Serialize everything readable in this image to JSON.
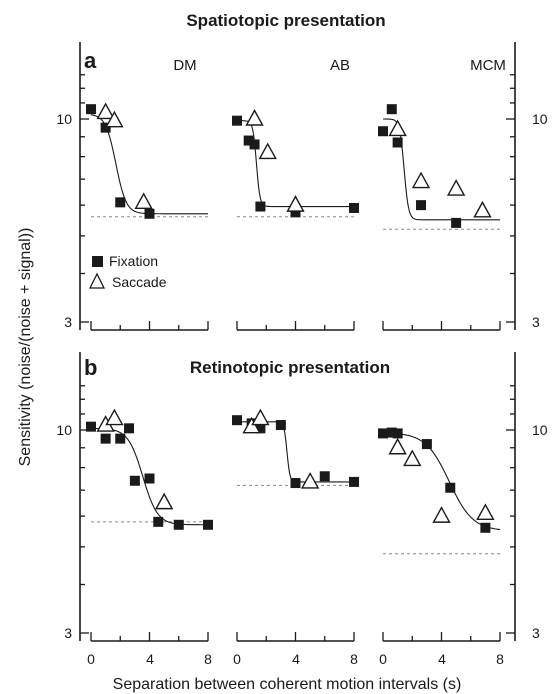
{
  "chart_data": {
    "type": "scatter",
    "ylabel": "Sensitivity (noise/(noise + signal))",
    "xlabel": "Separation between coherent motion intervals (s)",
    "y_scale": "log",
    "ylim": [
      3,
      14
    ],
    "y_ticks": [
      "10",
      "3"
    ],
    "x_ticks": [
      "0",
      "4",
      "8"
    ],
    "xlim": [
      0,
      8
    ],
    "legend": {
      "placement": "lower-left of panel a, first subject",
      "entries": [
        {
          "label": "Fixation",
          "marker": "filled-square"
        },
        {
          "label": "Saccade",
          "marker": "open-triangle"
        }
      ]
    },
    "panels": [
      {
        "letter": "a",
        "title": "Spatiotopic presentation",
        "subjects": [
          {
            "name": "DM",
            "baseline": 5.6,
            "fit": {
              "high": 10.3,
              "low": 5.7,
              "x50": 1.6,
              "k": 0.35
            },
            "fixation": [
              [
                0,
                10.6
              ],
              [
                1.0,
                9.5
              ],
              [
                2.0,
                6.1
              ],
              [
                4.0,
                5.7
              ]
            ],
            "saccade": [
              [
                1.0,
                10.4
              ],
              [
                1.6,
                9.9
              ],
              [
                3.6,
                6.1
              ]
            ]
          },
          {
            "name": "AB",
            "baseline": 5.6,
            "fit": {
              "high": 9.9,
              "low": 5.95,
              "x50": 1.3,
              "k": 0.12
            },
            "fixation": [
              [
                0,
                9.9
              ],
              [
                0.8,
                8.8
              ],
              [
                1.2,
                8.6
              ],
              [
                1.6,
                5.95
              ],
              [
                4.0,
                5.75
              ],
              [
                8.0,
                5.9
              ]
            ],
            "saccade": [
              [
                1.2,
                10.0
              ],
              [
                2.1,
                8.2
              ],
              [
                4.0,
                6.0
              ]
            ]
          },
          {
            "name": "MCM",
            "baseline": 5.2,
            "fit": {
              "high": 10.0,
              "low": 5.5,
              "x50": 1.4,
              "k": 0.15
            },
            "fixation": [
              [
                0,
                9.3
              ],
              [
                0.6,
                10.6
              ],
              [
                1.0,
                8.7
              ],
              [
                2.6,
                6.0
              ],
              [
                5.0,
                5.4
              ]
            ],
            "saccade": [
              [
                1.0,
                9.4
              ],
              [
                2.6,
                6.9
              ],
              [
                5.0,
                6.6
              ],
              [
                6.8,
                5.8
              ]
            ]
          }
        ]
      },
      {
        "letter": "b",
        "title": "Retinotopic presentation",
        "subjects": [
          {
            "name": "DM",
            "baseline": 5.8,
            "fit": {
              "high": 10.1,
              "low": 5.7,
              "x50": 3.4,
              "k": 0.5
            },
            "fixation": [
              [
                0,
                10.2
              ],
              [
                1.0,
                9.5
              ],
              [
                2.0,
                9.5
              ],
              [
                2.6,
                10.1
              ],
              [
                3.0,
                7.4
              ],
              [
                4.0,
                7.5
              ],
              [
                4.6,
                5.8
              ],
              [
                6.0,
                5.7
              ],
              [
                8.0,
                5.7
              ]
            ],
            "saccade": [
              [
                1.0,
                10.3
              ],
              [
                1.6,
                10.7
              ],
              [
                5.0,
                6.5
              ]
            ]
          },
          {
            "name": "AB",
            "baseline": 7.2,
            "fit": {
              "high": 10.5,
              "low": 7.35,
              "x50": 3.4,
              "k": 0.1
            },
            "fixation": [
              [
                0,
                10.6
              ],
              [
                1.0,
                10.4
              ],
              [
                1.6,
                10.1
              ],
              [
                3.0,
                10.3
              ],
              [
                4.0,
                7.3
              ],
              [
                6.0,
                7.6
              ],
              [
                8.0,
                7.35
              ]
            ],
            "saccade": [
              [
                1.0,
                10.2
              ],
              [
                1.6,
                10.7
              ],
              [
                5.0,
                7.35
              ]
            ]
          },
          {
            "name": "MCM",
            "baseline": 4.8,
            "fit": {
              "high": 9.85,
              "low": 5.5,
              "x50": 4.3,
              "k": 0.8
            },
            "fixation": [
              [
                0,
                9.8
              ],
              [
                0.6,
                9.85
              ],
              [
                1.0,
                9.8
              ],
              [
                3.0,
                9.2
              ],
              [
                4.6,
                7.1
              ],
              [
                7.0,
                5.6
              ]
            ],
            "saccade": [
              [
                1.0,
                9.0
              ],
              [
                2.0,
                8.4
              ],
              [
                4.0,
                6.0
              ],
              [
                7.0,
                6.1
              ]
            ]
          }
        ]
      }
    ]
  }
}
